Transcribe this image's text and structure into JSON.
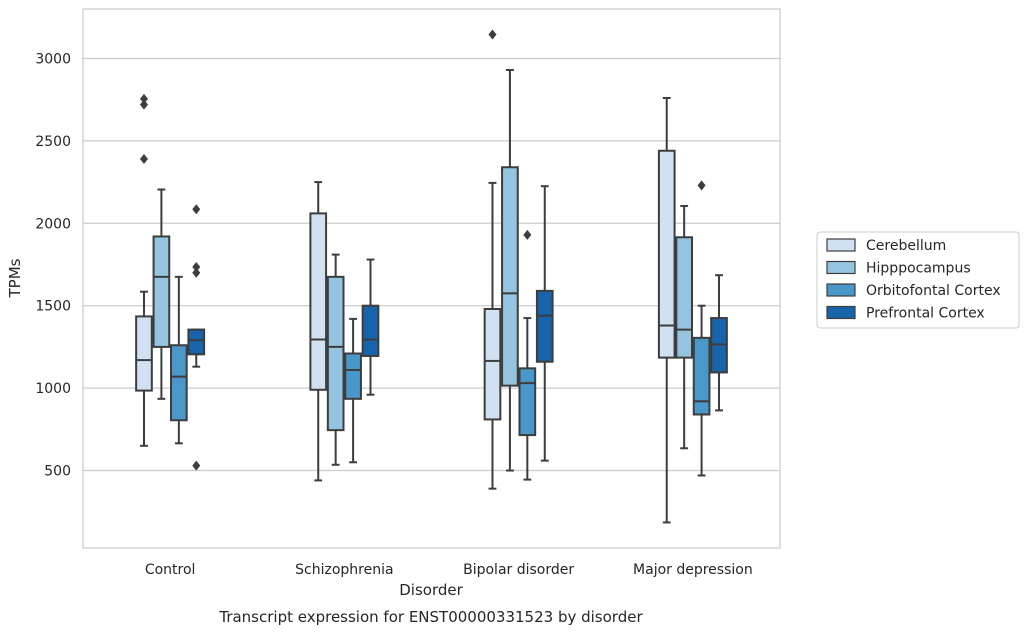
{
  "chart_data": {
    "type": "box",
    "caption": "Transcript expression for ENST00000331523 by disorder",
    "xlabel": "Disorder",
    "ylabel": "TPMs",
    "ylim": [
      30,
      3300
    ],
    "yticks": [
      500,
      1000,
      1500,
      2000,
      2500,
      3000
    ],
    "grid": "horizontal",
    "legend_position": "right",
    "categories": [
      "Control",
      "Schizophrenia",
      "Bipolar disorder",
      "Major depression"
    ],
    "series": [
      {
        "name": "Cerebellum",
        "color": "#d0e1f2",
        "boxes": [
          {
            "whisker_low": 650,
            "q1": 985,
            "median": 1170,
            "q3": 1435,
            "whisker_high": 1585,
            "outliers": [
              2390,
              2720,
              2755
            ]
          },
          {
            "whisker_low": 440,
            "q1": 990,
            "median": 1295,
            "q3": 2060,
            "whisker_high": 2250,
            "outliers": []
          },
          {
            "whisker_low": 390,
            "q1": 810,
            "median": 1165,
            "q3": 1480,
            "whisker_high": 2245,
            "outliers": [
              3145
            ]
          },
          {
            "whisker_low": 185,
            "q1": 1185,
            "median": 1380,
            "q3": 2440,
            "whisker_high": 2760,
            "outliers": []
          }
        ]
      },
      {
        "name": "Hipppocampus",
        "color": "#94c4df",
        "boxes": [
          {
            "whisker_low": 935,
            "q1": 1250,
            "median": 1675,
            "q3": 1920,
            "whisker_high": 2205,
            "outliers": []
          },
          {
            "whisker_low": 535,
            "q1": 745,
            "median": 1250,
            "q3": 1675,
            "whisker_high": 1810,
            "outliers": []
          },
          {
            "whisker_low": 500,
            "q1": 1015,
            "median": 1575,
            "q3": 2340,
            "whisker_high": 2930,
            "outliers": []
          },
          {
            "whisker_low": 635,
            "q1": 1185,
            "median": 1355,
            "q3": 1915,
            "whisker_high": 2105,
            "outliers": []
          }
        ]
      },
      {
        "name": "Orbitofontal Cortex",
        "color": "#4a98c9",
        "boxes": [
          {
            "whisker_low": 665,
            "q1": 805,
            "median": 1070,
            "q3": 1260,
            "whisker_high": 1675,
            "outliers": []
          },
          {
            "whisker_low": 550,
            "q1": 935,
            "median": 1110,
            "q3": 1210,
            "whisker_high": 1420,
            "outliers": []
          },
          {
            "whisker_low": 445,
            "q1": 715,
            "median": 1030,
            "q3": 1120,
            "whisker_high": 1425,
            "outliers": [
              1930
            ]
          },
          {
            "whisker_low": 470,
            "q1": 840,
            "median": 920,
            "q3": 1305,
            "whisker_high": 1500,
            "outliers": [
              2230
            ]
          }
        ]
      },
      {
        "name": "Prefrontal Cortex",
        "color": "#1764ab",
        "boxes": [
          {
            "whisker_low": 1130,
            "q1": 1205,
            "median": 1290,
            "q3": 1355,
            "whisker_high": 1355,
            "outliers": [
              530,
              1700,
              1735,
              2085
            ]
          },
          {
            "whisker_low": 960,
            "q1": 1195,
            "median": 1295,
            "q3": 1500,
            "whisker_high": 1780,
            "outliers": []
          },
          {
            "whisker_low": 560,
            "q1": 1160,
            "median": 1440,
            "q3": 1590,
            "whisker_high": 2225,
            "outliers": []
          },
          {
            "whisker_low": 865,
            "q1": 1095,
            "median": 1265,
            "q3": 1425,
            "whisker_high": 1685,
            "outliers": []
          }
        ]
      }
    ]
  }
}
